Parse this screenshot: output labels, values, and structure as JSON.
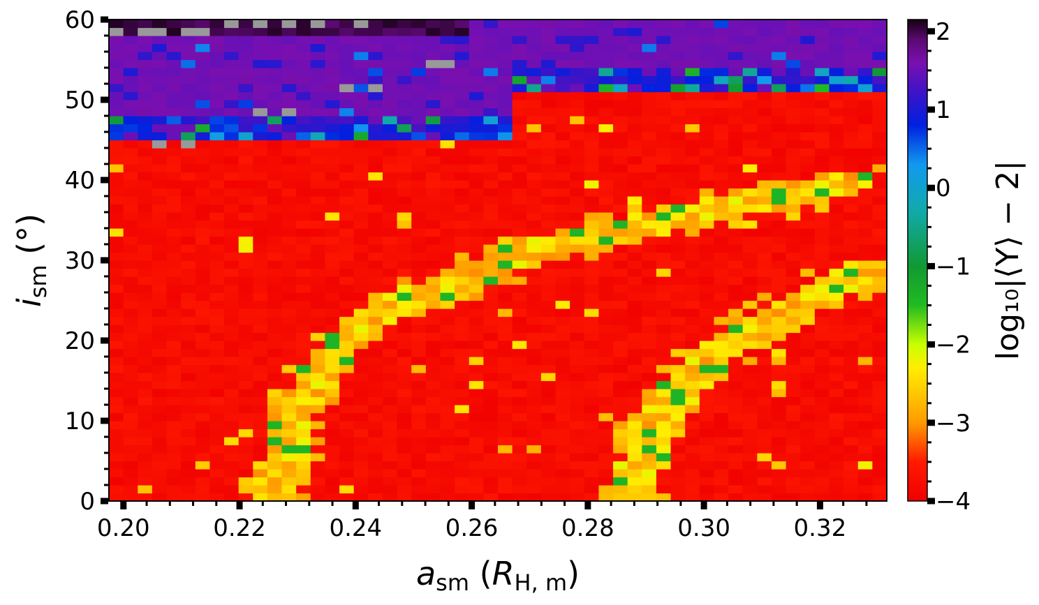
{
  "chart_data": {
    "type": "heatmap",
    "title": "",
    "xlabel": {
      "main": "a",
      "sub": "sm",
      "unit_main": "R",
      "unit_sub": "H, m"
    },
    "ylabel": {
      "main": "i",
      "sub": "sm",
      "unit": "(°)"
    },
    "colorbar_label": "log₁₀|⟨Y⟩ − 2|",
    "x_ticks": [
      "0.20",
      "0.22",
      "0.24",
      "0.26",
      "0.28",
      "0.30",
      "0.32"
    ],
    "x_tick_values": [
      0.2,
      0.22,
      0.24,
      0.26,
      0.28,
      0.3,
      0.32
    ],
    "y_ticks": [
      "0",
      "10",
      "20",
      "30",
      "40",
      "50",
      "60"
    ],
    "y_tick_values": [
      0,
      10,
      20,
      30,
      40,
      50,
      60
    ],
    "colorbar_ticks": [
      "−4",
      "−3",
      "−2",
      "−1",
      "0",
      "1",
      "2"
    ],
    "colorbar_tick_values": [
      -4,
      -3,
      -2,
      -1,
      0,
      1,
      2
    ],
    "xlim": [
      0.1975,
      0.3315
    ],
    "ylim": [
      0,
      60
    ],
    "clim": [
      -4,
      2.15
    ],
    "grid": {
      "x_cells": 54,
      "y_cells": 60
    },
    "colorscale": [
      {
        "v": -4.0,
        "color": "#f00000"
      },
      {
        "v": -3.5,
        "color": "#ff1a00"
      },
      {
        "v": -3.0,
        "color": "#ff9a00"
      },
      {
        "v": -2.3,
        "color": "#ffee00"
      },
      {
        "v": -2.0,
        "color": "#c8ff00"
      },
      {
        "v": -1.5,
        "color": "#22bb22"
      },
      {
        "v": -1.0,
        "color": "#119933"
      },
      {
        "v": -0.3,
        "color": "#11aaaa"
      },
      {
        "v": 0.3,
        "color": "#1199ee"
      },
      {
        "v": 0.8,
        "color": "#0020e0"
      },
      {
        "v": 1.2,
        "color": "#3a14c8"
      },
      {
        "v": 1.6,
        "color": "#7a0fb0"
      },
      {
        "v": 1.9,
        "color": "#5a0a70"
      },
      {
        "v": 2.15,
        "color": "#150010"
      }
    ],
    "undefined_color": "#999999",
    "regions": {
      "unstable_above_deg_left": 45,
      "unstable_above_deg_right": 51,
      "transition_x": 0.267
    },
    "resonance_curves": [
      {
        "name": "",
        "points": [
          [
            0.226,
            0
          ],
          [
            0.2275,
            5
          ],
          [
            0.229,
            10
          ],
          [
            0.2325,
            14
          ],
          [
            0.236,
            18
          ],
          [
            0.24,
            21
          ],
          [
            0.246,
            24
          ],
          [
            0.253,
            26
          ],
          [
            0.26,
            28
          ],
          [
            0.27,
            31
          ],
          [
            0.28,
            33
          ],
          [
            0.29,
            34.5
          ],
          [
            0.3,
            36
          ],
          [
            0.31,
            37.5
          ],
          [
            0.318,
            38.5
          ],
          [
            0.326,
            40
          ]
        ],
        "width": 1.6
      },
      {
        "name": "",
        "points": [
          [
            0.288,
            0
          ],
          [
            0.2895,
            5
          ],
          [
            0.292,
            10
          ],
          [
            0.297,
            15
          ],
          [
            0.303,
            19
          ],
          [
            0.31,
            22
          ],
          [
            0.316,
            24.5
          ],
          [
            0.324,
            27.5
          ],
          [
            0.33,
            29
          ]
        ],
        "width": 1.6
      }
    ],
    "undefined_cells": [
      [
        0.1985,
        58
      ],
      [
        0.2025,
        58
      ],
      [
        0.2065,
        58
      ],
      [
        0.2105,
        58
      ],
      [
        0.2145,
        58
      ],
      [
        0.2185,
        59.5
      ],
      [
        0.2225,
        59.5
      ],
      [
        0.2285,
        59.5
      ],
      [
        0.2345,
        59.5
      ],
      [
        0.2405,
        59.5
      ],
      [
        0.2545,
        54.5
      ],
      [
        0.2565,
        54.5
      ],
      [
        0.2385,
        51.5
      ],
      [
        0.2425,
        51.5
      ],
      [
        0.2245,
        48.5
      ],
      [
        0.2285,
        48.5
      ],
      [
        0.2065,
        44.5
      ],
      [
        0.2105,
        44.5
      ]
    ]
  }
}
